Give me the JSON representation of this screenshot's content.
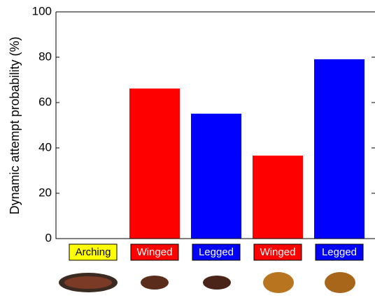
{
  "chart_data": {
    "type": "bar",
    "y_label": "Dynamic attempt probability (%)",
    "categories": [
      "Arching",
      "Winged",
      "Legged",
      "Winged",
      "Legged"
    ],
    "values": [
      0,
      66.2,
      55.1,
      36.6,
      79.1
    ],
    "colors": [
      "#ffff00",
      "#ff0000",
      "#0000ff",
      "#ff0000",
      "#0000ff"
    ],
    "label_text_colors": [
      "#000000",
      "#ffffff",
      "#ffffff",
      "#ffffff",
      "#ffffff"
    ],
    "ylim": [
      0,
      100
    ],
    "yticks": [
      0,
      20,
      40,
      60,
      80,
      100
    ]
  }
}
